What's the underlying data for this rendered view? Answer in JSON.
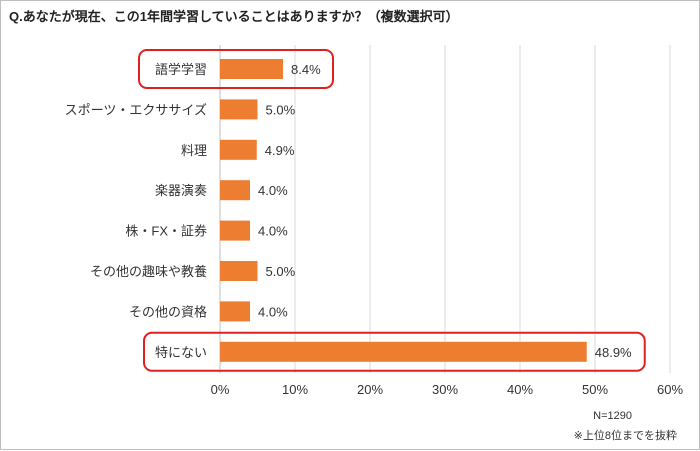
{
  "chart_data": {
    "type": "bar",
    "orientation": "horizontal",
    "title": "Q.あなたが現在、この1年間学習していることはありますか？（複数選択可）",
    "categories": [
      "語学学習",
      "スポーツ・エクササイズ",
      "料理",
      "楽器演奏",
      "株・FX・証券",
      "その他の趣味や教養",
      "その他の資格",
      "特にない"
    ],
    "values": [
      8.4,
      5.0,
      4.9,
      4.0,
      4.0,
      5.0,
      4.0,
      48.9
    ],
    "value_labels": [
      "8.4%",
      "5.0%",
      "4.9%",
      "4.0%",
      "4.0%",
      "5.0%",
      "4.0%",
      "48.9%"
    ],
    "highlighted": [
      "語学学習",
      "特にない"
    ],
    "xlim": [
      0,
      60
    ],
    "x_ticks": [
      "0%",
      "10%",
      "20%",
      "30%",
      "40%",
      "50%",
      "60%"
    ],
    "grid": true,
    "bar_color": "#ED7D31",
    "highlight_color": "#E02020",
    "grid_color": "#D9D9D9"
  },
  "notes": {
    "sample_size": "N=1290",
    "footnote": "※上位8位までを抜粋"
  }
}
